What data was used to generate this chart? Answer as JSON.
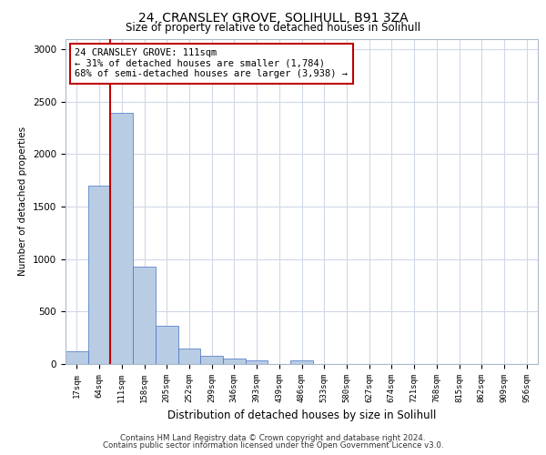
{
  "title1": "24, CRANSLEY GROVE, SOLIHULL, B91 3ZA",
  "title2": "Size of property relative to detached houses in Solihull",
  "xlabel": "Distribution of detached houses by size in Solihull",
  "ylabel": "Number of detached properties",
  "categories": [
    "17sqm",
    "64sqm",
    "111sqm",
    "158sqm",
    "205sqm",
    "252sqm",
    "299sqm",
    "346sqm",
    "393sqm",
    "439sqm",
    "486sqm",
    "533sqm",
    "580sqm",
    "627sqm",
    "674sqm",
    "721sqm",
    "768sqm",
    "815sqm",
    "862sqm",
    "909sqm",
    "956sqm"
  ],
  "values": [
    120,
    1700,
    2390,
    930,
    360,
    150,
    75,
    55,
    35,
    0,
    35,
    0,
    0,
    0,
    0,
    0,
    0,
    0,
    0,
    0,
    0
  ],
  "bar_color": "#b8cce4",
  "bar_edge_color": "#4472c4",
  "highlight_line_color": "#c00000",
  "annotation_line1": "24 CRANSLEY GROVE: 111sqm",
  "annotation_line2": "← 31% of detached houses are smaller (1,784)",
  "annotation_line3": "68% of semi-detached houses are larger (3,938) →",
  "annotation_box_color": "#c00000",
  "ylim": [
    0,
    3100
  ],
  "yticks": [
    0,
    500,
    1000,
    1500,
    2000,
    2500,
    3000
  ],
  "footer1": "Contains HM Land Registry data © Crown copyright and database right 2024.",
  "footer2": "Contains public sector information licensed under the Open Government Licence v3.0.",
  "bg_color": "#ffffff",
  "grid_color": "#d0d8e8",
  "fig_width": 6.0,
  "fig_height": 5.0
}
